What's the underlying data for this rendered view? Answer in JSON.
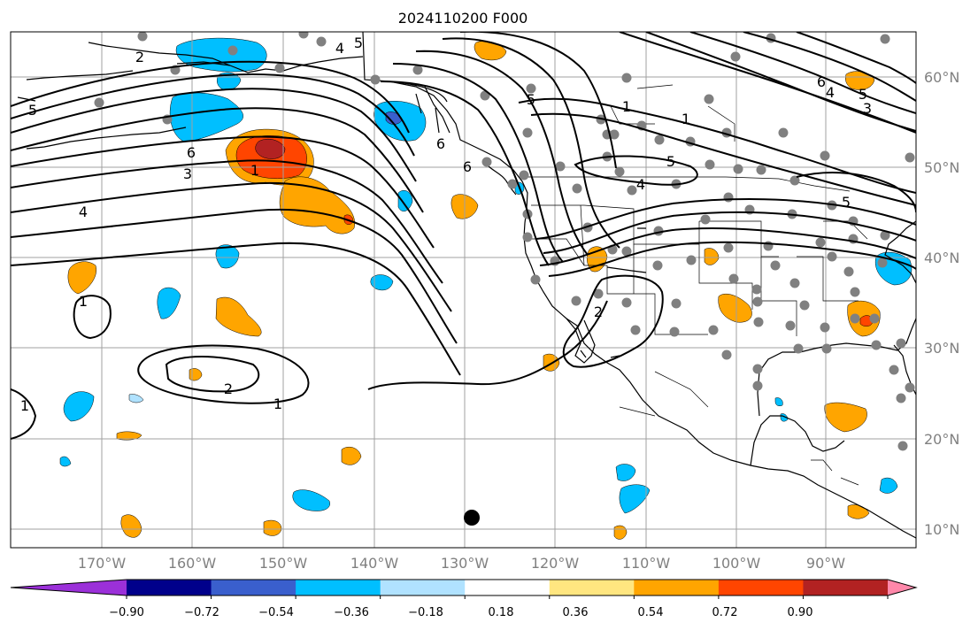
{
  "map": {
    "title": "2024110200 F000",
    "lon_labels": [
      "170°W",
      "160°W",
      "150°W",
      "140°W",
      "130°W",
      "120°W",
      "110°W",
      "100°W",
      "90°W"
    ],
    "lat_labels": [
      "60°N",
      "50°N",
      "40°N",
      "30°N",
      "20°N",
      "10°N"
    ],
    "contour_labels": [
      "2",
      "4",
      "5",
      "5",
      "5",
      "6",
      "1",
      "3",
      "4",
      "1",
      "5",
      "6",
      "5",
      "4",
      "3",
      "1",
      "4",
      "5",
      "6",
      "1",
      "2",
      "1",
      "2",
      "1",
      "6"
    ]
  },
  "colorbar": {
    "ticks": [
      "−0.90",
      "−0.72",
      "−0.54",
      "−0.36",
      "−0.18",
      "0.18",
      "0.36",
      "0.54",
      "0.72",
      "0.90"
    ],
    "colors": [
      "#9b30d9",
      "#00008b",
      "#3a5fcd",
      "#00bfff",
      "#b0e2ff",
      "#ffffff",
      "#ffe680",
      "#ffa500",
      "#ff4500",
      "#b22222",
      "#ff88aa"
    ]
  }
}
